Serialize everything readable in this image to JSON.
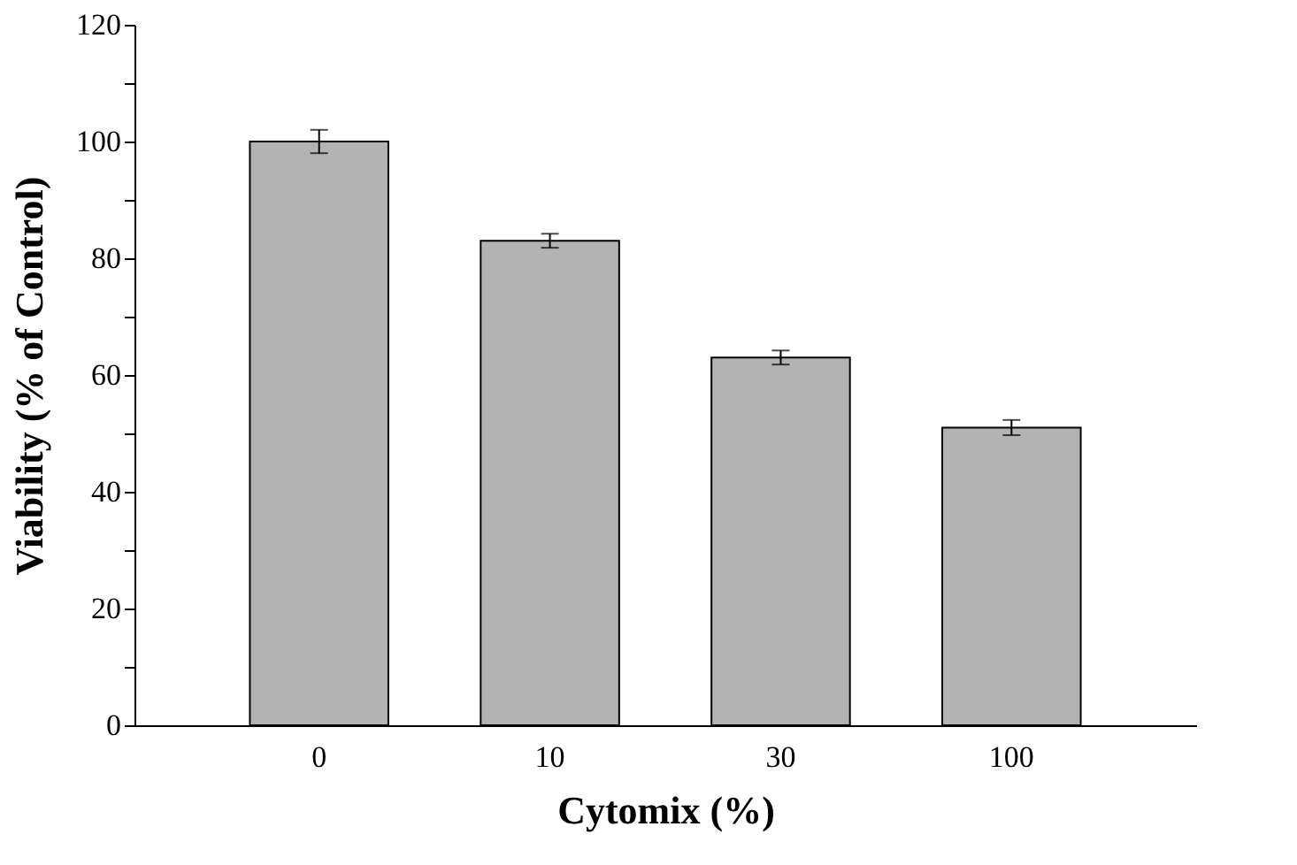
{
  "chart_data": {
    "type": "bar",
    "xlabel": "Cytomix (%)",
    "ylabel": "Viability (% of Control)",
    "categories": [
      "0",
      "10",
      "30",
      "100"
    ],
    "values": [
      100,
      83,
      63,
      51
    ],
    "errors": [
      2,
      1.2,
      1.2,
      1.3
    ],
    "color": "#b3b3b3",
    "ylim": [
      0,
      120
    ],
    "yticks": [
      0,
      {
        "value": 10,
        "label": null
      },
      20,
      {
        "value": 30,
        "label": null
      },
      40,
      {
        "value": 50,
        "label": null
      },
      60,
      {
        "value": 70,
        "label": null
      },
      80,
      {
        "value": 90,
        "label": null
      },
      100,
      {
        "value": 110,
        "label": null
      },
      120
    ],
    "grid": false
  }
}
